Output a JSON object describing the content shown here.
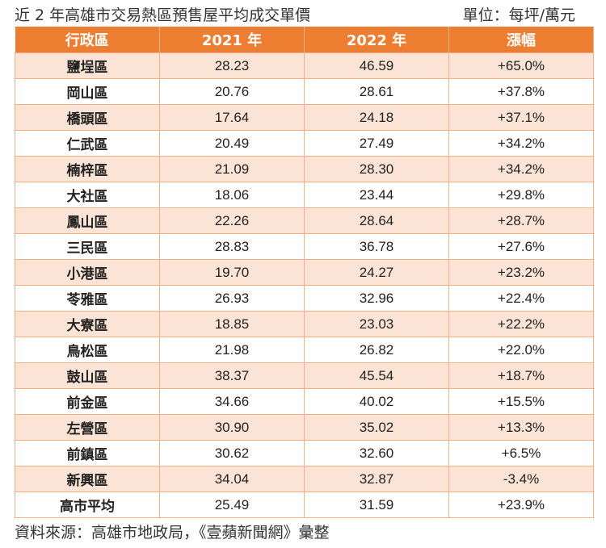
{
  "title": "近 2 年高雄市交易熱區預售屋平均成交單價",
  "unit": "單位：每坪/萬元",
  "colors": {
    "header": "#ED7D31",
    "stripe": "#FBE4D5",
    "border": "#F4B183"
  },
  "table": {
    "headers": [
      "行政區",
      "2021 年",
      "2022 年",
      "漲幅"
    ],
    "rows": [
      [
        "鹽埕區",
        "28.23",
        "46.59",
        "+65.0%"
      ],
      [
        "岡山區",
        "20.76",
        "28.61",
        "+37.8%"
      ],
      [
        "橋頭區",
        "17.64",
        "24.18",
        "+37.1%"
      ],
      [
        "仁武區",
        "20.49",
        "27.49",
        "+34.2%"
      ],
      [
        "楠梓區",
        "21.09",
        "28.30",
        "+34.2%"
      ],
      [
        "大社區",
        "18.06",
        "23.44",
        "+29.8%"
      ],
      [
        "鳳山區",
        "22.26",
        "28.64",
        "+28.7%"
      ],
      [
        "三民區",
        "28.83",
        "36.78",
        "+27.6%"
      ],
      [
        "小港區",
        "19.70",
        "24.27",
        "+23.2%"
      ],
      [
        "苓雅區",
        "26.93",
        "32.96",
        "+22.4%"
      ],
      [
        "大寮區",
        "18.85",
        "23.03",
        "+22.2%"
      ],
      [
        "鳥松區",
        "21.98",
        "26.82",
        "+22.0%"
      ],
      [
        "鼓山區",
        "38.37",
        "45.54",
        "+18.7%"
      ],
      [
        "前金區",
        "34.66",
        "40.02",
        "+15.5%"
      ],
      [
        "左營區",
        "30.90",
        "35.02",
        "+13.3%"
      ],
      [
        "前鎮區",
        "30.62",
        "32.60",
        "+6.5%"
      ],
      [
        "新興區",
        "34.04",
        "32.87",
        "-3.4%"
      ],
      [
        "高市平均",
        "25.49",
        "31.59",
        "+23.9%"
      ]
    ]
  },
  "source": "資料來源：高雄市地政局，《壹蘋新聞網》彙整"
}
